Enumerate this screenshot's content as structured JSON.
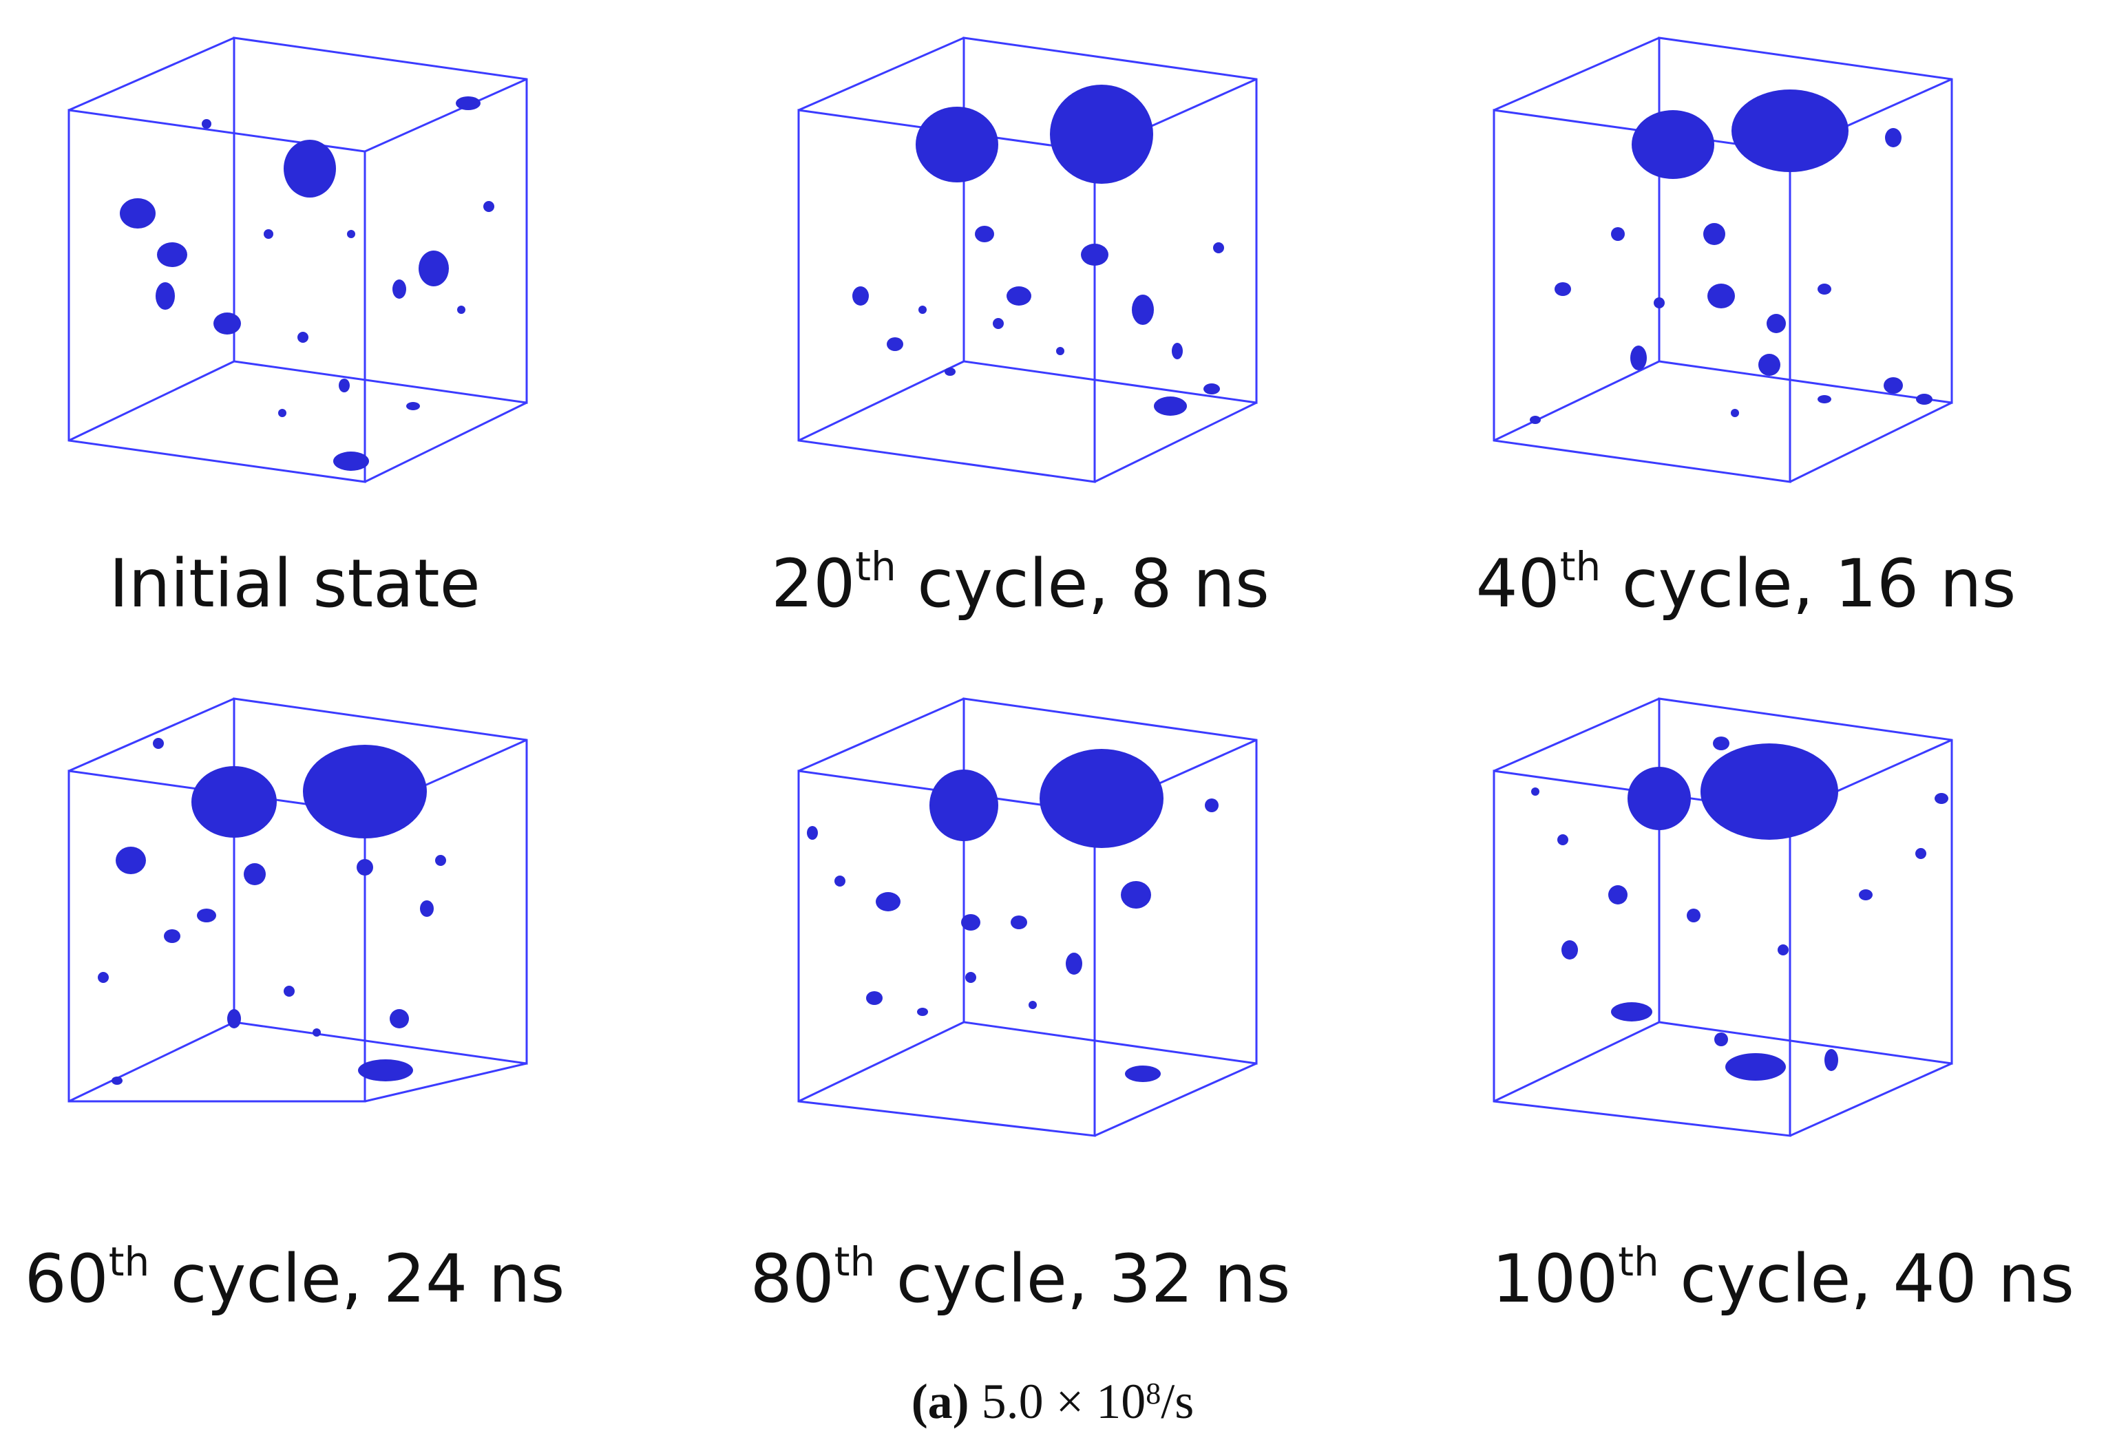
{
  "figure": {
    "caption": {
      "letter": "(a)",
      "rate_base": "5.0 × 10",
      "rate_exp": "8",
      "rate_unit": "/s"
    },
    "colors": {
      "box": "#3b3bff",
      "void": "#2a2ad8",
      "void_dark": "#14148f",
      "text": "#111111"
    },
    "panels": [
      {
        "id": "initial",
        "label_main": "Initial state",
        "label_sup": "",
        "label_rest": ""
      },
      {
        "id": "c20",
        "label_main": "20",
        "label_sup": "th",
        "label_rest": " cycle, 8 ns"
      },
      {
        "id": "c40",
        "label_main": "40",
        "label_sup": "th",
        "label_rest": " cycle, 16 ns"
      },
      {
        "id": "c60",
        "label_main": "60",
        "label_sup": "th",
        "label_rest": " cycle, 24 ns"
      },
      {
        "id": "c80",
        "label_main": "80",
        "label_sup": "th",
        "label_rest": " cycle, 32 ns"
      },
      {
        "id": "c100",
        "label_main": "100",
        "label_sup": "th",
        "label_rest": " cycle, 40 ns"
      }
    ]
  }
}
